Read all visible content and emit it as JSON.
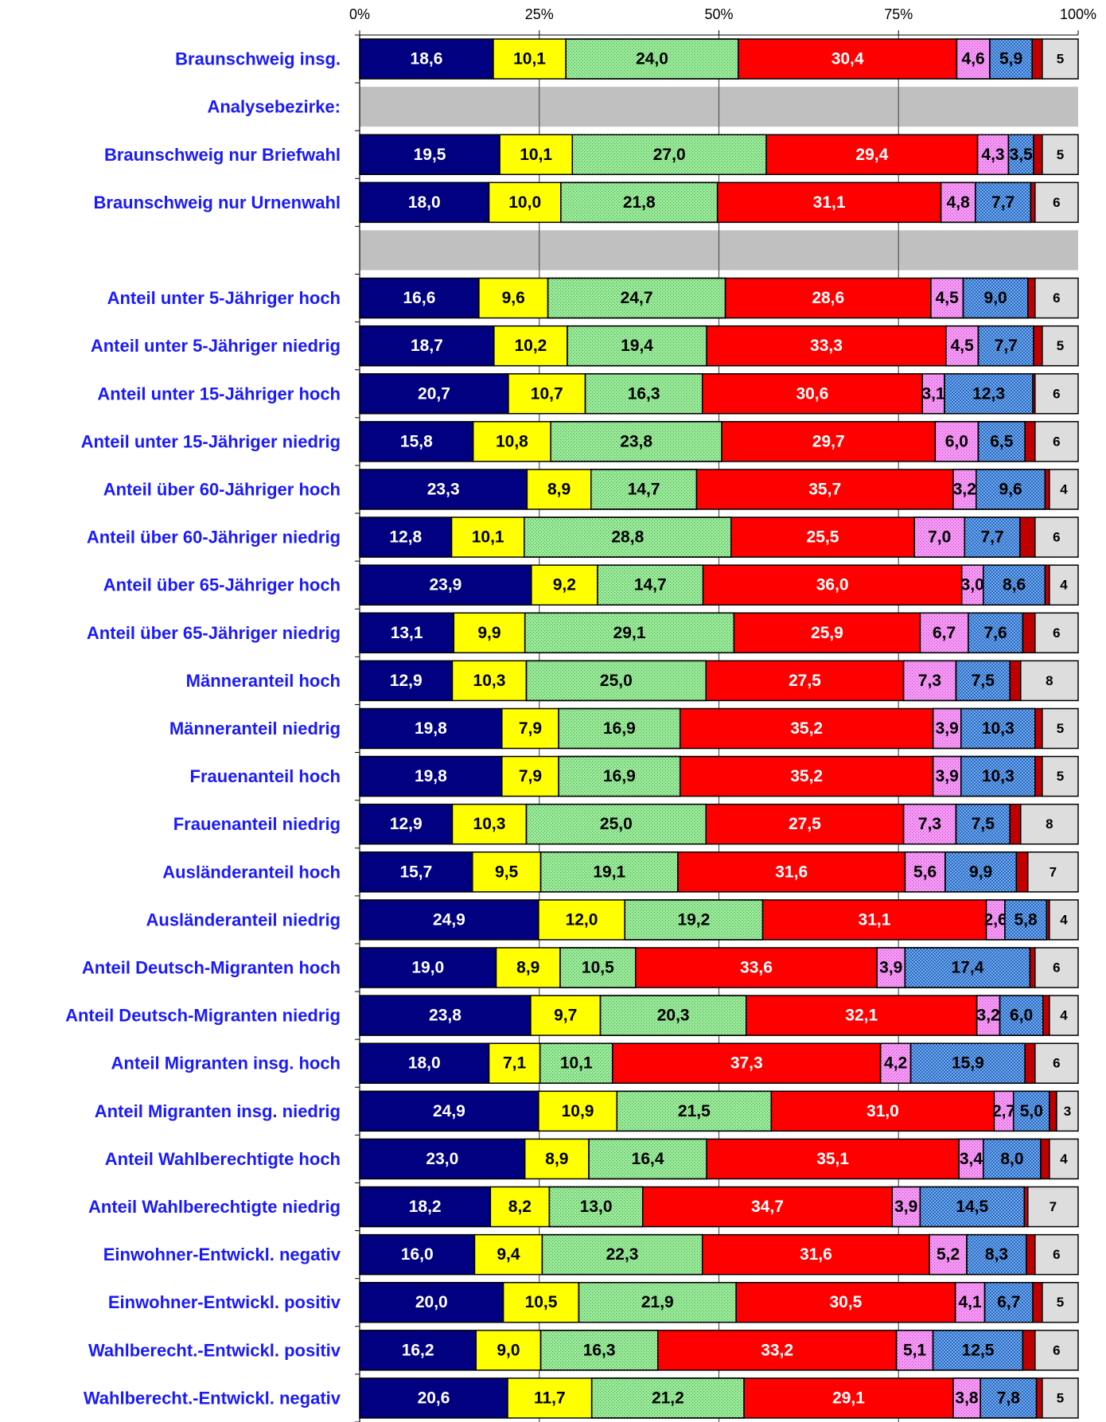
{
  "chart_data": {
    "type": "stacked_bar_horizontal",
    "categories": [
      "Braunschweig insg.",
      "Analysebezirke:",
      "Braunschweig nur Briefwahl",
      "Braunschweig nur Urnenwahl",
      null,
      "Anteil unter 5-Jähriger hoch",
      "Anteil unter 5-Jähriger niedrig",
      "Anteil unter 15-Jähriger hoch",
      "Anteil unter 15-Jähriger niedrig",
      "Anteil über 60-Jähriger hoch",
      "Anteil über 60-Jähriger niedrig",
      "Anteil über 65-Jähriger hoch",
      "Anteil über 65-Jähriger niedrig",
      "Männeranteil hoch",
      "Männeranteil niedrig",
      "Frauenanteil hoch",
      "Frauenanteil niedrig",
      "Ausländeranteil hoch",
      "Ausländeranteil niedrig",
      "Anteil Deutsch-Migranten hoch",
      "Anteil Deutsch-Migranten niedrig",
      "Anteil Migranten insg. hoch",
      "Anteil Migranten insg. niedrig",
      "Anteil Wahlberechtigte hoch",
      "Anteil Wahlberechtigte niedrig",
      "Einwohner-Entwickl. negativ",
      "Einwohner-Entwickl. positiv",
      "Wahlberecht.-Entwickl.  positiv",
      "Wahlberecht.-Entwickl. negativ"
    ],
    "series": [
      {
        "color": "#000080",
        "label_color": "#ffffff",
        "values": [
          18.6,
          null,
          19.5,
          18.0,
          null,
          16.6,
          18.7,
          20.7,
          15.8,
          23.3,
          12.8,
          23.9,
          13.1,
          12.9,
          19.8,
          19.8,
          12.9,
          15.7,
          24.9,
          19.0,
          23.8,
          18.0,
          24.9,
          23.0,
          18.2,
          16.0,
          20.0,
          16.2,
          20.6
        ],
        "value_labels": [
          "18,6",
          null,
          "19,5",
          "18,0",
          null,
          "16,6",
          "18,7",
          "20,7",
          "15,8",
          "23,3",
          "12,8",
          "23,9",
          "13,1",
          "12,9",
          "19,8",
          "19,8",
          "12,9",
          "15,7",
          "24,9",
          "19,0",
          "23,8",
          "18,0",
          "24,9",
          "23,0",
          "18,2",
          "16,0",
          "20,0",
          "16,2",
          "20,6"
        ]
      },
      {
        "color": "#ffff00",
        "label_color": "#000000",
        "values": [
          10.1,
          null,
          10.1,
          10.0,
          null,
          9.6,
          10.2,
          10.7,
          10.8,
          8.9,
          10.1,
          9.2,
          9.9,
          10.3,
          7.9,
          7.9,
          10.3,
          9.5,
          12.0,
          8.9,
          9.7,
          7.1,
          10.9,
          8.9,
          8.2,
          9.4,
          10.5,
          9.0,
          11.7
        ],
        "value_labels": [
          "10,1",
          null,
          "10,1",
          "10,0",
          null,
          "9,6",
          "10,2",
          "10,7",
          "10,8",
          "8,9",
          "10,1",
          "9,2",
          "9,9",
          "10,3",
          "7,9",
          "7,9",
          "10,3",
          "9,5",
          "12,0",
          "8,9",
          "9,7",
          "7,1",
          "10,9",
          "8,9",
          "8,2",
          "9,4",
          "10,5",
          "9,0",
          "11,7"
        ]
      },
      {
        "color": "#99f099",
        "label_color": "#000000",
        "pattern": "dots",
        "values": [
          24.0,
          null,
          27.0,
          21.8,
          null,
          24.7,
          19.4,
          16.3,
          23.8,
          14.7,
          28.8,
          14.7,
          29.1,
          25.0,
          16.9,
          16.9,
          25.0,
          19.1,
          19.2,
          10.5,
          20.3,
          10.1,
          21.5,
          16.4,
          13.0,
          22.3,
          21.9,
          16.3,
          21.2
        ],
        "value_labels": [
          "24,0",
          null,
          "27,0",
          "21,8",
          null,
          "24,7",
          "19,4",
          "16,3",
          "23,8",
          "14,7",
          "28,8",
          "14,7",
          "29,1",
          "25,0",
          "16,9",
          "16,9",
          "25,0",
          "19,1",
          "19,2",
          "10,5",
          "20,3",
          "10,1",
          "21,5",
          "16,4",
          "13,0",
          "22,3",
          "21,9",
          "16,3",
          "21,2"
        ]
      },
      {
        "color": "#ff0000",
        "label_color": "#ffffff",
        "values": [
          30.4,
          null,
          29.4,
          31.1,
          null,
          28.6,
          33.3,
          30.6,
          29.7,
          35.7,
          25.5,
          36.0,
          25.9,
          27.5,
          35.2,
          35.2,
          27.5,
          31.6,
          31.1,
          33.6,
          32.1,
          37.3,
          31.0,
          35.1,
          34.7,
          31.6,
          30.5,
          33.2,
          29.1
        ],
        "value_labels": [
          "30,4",
          null,
          "29,4",
          "31,1",
          null,
          "28,6",
          "33,3",
          "30,6",
          "29,7",
          "35,7",
          "25,5",
          "36,0",
          "25,9",
          "27,5",
          "35,2",
          "35,2",
          "27,5",
          "31,6",
          "31,1",
          "33,6",
          "32,1",
          "37,3",
          "31,0",
          "35,1",
          "34,7",
          "31,6",
          "30,5",
          "33,2",
          "29,1"
        ]
      },
      {
        "color": "#ff99ff",
        "label_color": "#000000",
        "pattern": "dots",
        "values": [
          4.6,
          null,
          4.3,
          4.8,
          null,
          4.5,
          4.5,
          3.1,
          6.0,
          3.2,
          7.0,
          3.0,
          6.7,
          7.3,
          3.9,
          3.9,
          7.3,
          5.6,
          2.6,
          3.9,
          3.2,
          4.2,
          2.7,
          3.4,
          3.9,
          5.2,
          4.1,
          5.1,
          3.8
        ],
        "value_labels": [
          "4,6",
          null,
          "4,3",
          "4,8",
          null,
          "4,5",
          "4,5",
          "3,1",
          "6,0",
          "3,2",
          "7,0",
          "3,0",
          "6,7",
          "7,3",
          "3,9",
          "3,9",
          "7,3",
          "5,6",
          "2,6",
          "3,9",
          "3,2",
          "4,2",
          "2,7",
          "3,4",
          "3,9",
          "5,2",
          "4,1",
          "5,1",
          "3,8"
        ]
      },
      {
        "color": "#66b3ff",
        "label_color": "#000000",
        "pattern": "checks",
        "values": [
          5.9,
          null,
          3.5,
          7.7,
          null,
          9.0,
          7.7,
          12.3,
          6.5,
          9.6,
          7.7,
          8.6,
          7.6,
          7.5,
          10.3,
          10.3,
          7.5,
          9.9,
          5.8,
          17.4,
          6.0,
          15.9,
          5.0,
          8.0,
          14.5,
          8.3,
          6.7,
          12.5,
          7.8
        ],
        "value_labels": [
          "5,9",
          null,
          "3,5",
          "7,7",
          null,
          "9,0",
          "7,7",
          "12,3",
          "6,5",
          "9,6",
          "7,7",
          "8,6",
          "7,6",
          "7,5",
          "10,3",
          "10,3",
          "7,5",
          "9,9",
          "5,8",
          "17,4",
          "6,0",
          "15,9",
          "5,0",
          "8,0",
          "14,5",
          "8,3",
          "6,7",
          "12,5",
          "7,8"
        ]
      },
      {
        "color": "#c00000",
        "values": [
          1.4,
          null,
          1.2,
          0.6,
          null,
          1.0,
          1.2,
          0.3,
          1.4,
          0.6,
          2.1,
          0.6,
          1.7,
          1.5,
          1.0,
          1.0,
          1.5,
          1.6,
          0.4,
          0.7,
          0.9,
          1.4,
          1.0,
          1.2,
          0.5,
          1.2,
          1.3,
          1.7,
          0.8
        ]
      },
      {
        "color": "#dddddd",
        "label_color": "#000000",
        "small_label": true,
        "values": [
          5,
          null,
          5,
          6,
          null,
          6,
          5,
          6,
          6,
          4,
          6,
          4,
          6,
          8,
          5,
          5,
          8,
          7,
          4,
          6,
          4,
          6,
          3,
          4,
          7,
          6,
          5,
          6,
          5
        ]
      }
    ],
    "xlim": [
      0,
      100
    ],
    "xticks": [
      {
        "value": 0,
        "label": "0%"
      },
      {
        "value": 25,
        "label": "25%"
      },
      {
        "value": 50,
        "label": "50%"
      },
      {
        "value": 75,
        "label": "75%"
      },
      {
        "value": 100,
        "label": "100%"
      }
    ],
    "grid": true,
    "empty_row_color": "#c0c0c0",
    "category_color": "#1a1aff"
  }
}
